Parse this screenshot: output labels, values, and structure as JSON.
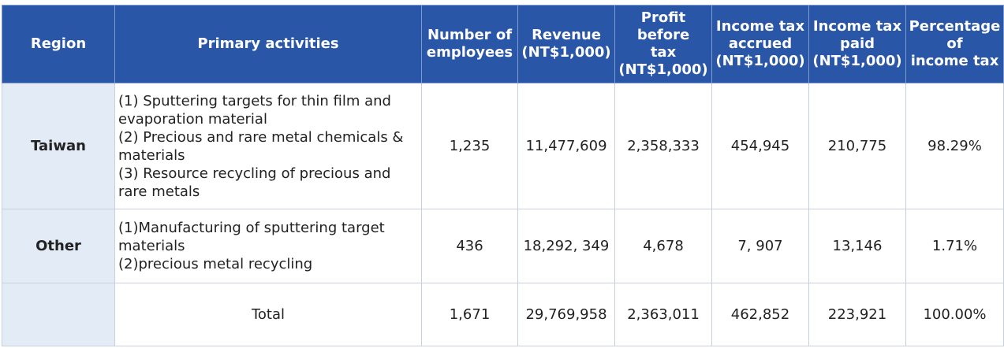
{
  "table": {
    "headers": {
      "region": "Region",
      "activities": "Primary activities",
      "employees": [
        "Number of",
        "employees"
      ],
      "revenue": [
        "Revenue",
        "(NT$1,000)"
      ],
      "profit": [
        "Profit before",
        "tax",
        "(NT$1,000)"
      ],
      "tax_accrued": [
        "Income tax",
        "accrued",
        "(NT$1,000)"
      ],
      "tax_paid": [
        "Income tax",
        "paid",
        "(NT$1,000)"
      ],
      "percentage": [
        "Percentage",
        "of",
        "income tax"
      ]
    },
    "rows": [
      {
        "region": "Taiwan",
        "activities": [
          "(1) Sputtering targets for thin film and",
          "evaporation material",
          "(2) Precious and rare metal chemicals &",
          "materials",
          "(3) Resource recycling of precious and",
          "rare metals"
        ],
        "employees": "1,235",
        "revenue": "11,477,609",
        "profit": "2,358,333",
        "tax_accrued": "454,945",
        "tax_paid": "210,775",
        "percentage": "98.29%"
      },
      {
        "region": "Other",
        "activities": [
          "(1)Manufacturing of sputtering target",
          "materials",
          "(2)precious metal recycling"
        ],
        "employees": "436",
        "revenue": "18,292, 349",
        "profit": "4,678",
        "tax_accrued": "7, 907",
        "tax_paid": "13,146",
        "percentage": "1.71%"
      }
    ],
    "total": {
      "region": "",
      "label": "Total",
      "employees": "1,671",
      "revenue": "29,769,958",
      "profit": "2,363,011",
      "tax_accrued": "462,852",
      "tax_paid": "223,921",
      "percentage": "100.00%"
    }
  },
  "colors": {
    "header_background": "#2a56a8",
    "header_text": "#ffffff",
    "region_cell_background": "#e3ebf7",
    "border": "#c7d0dc"
  }
}
